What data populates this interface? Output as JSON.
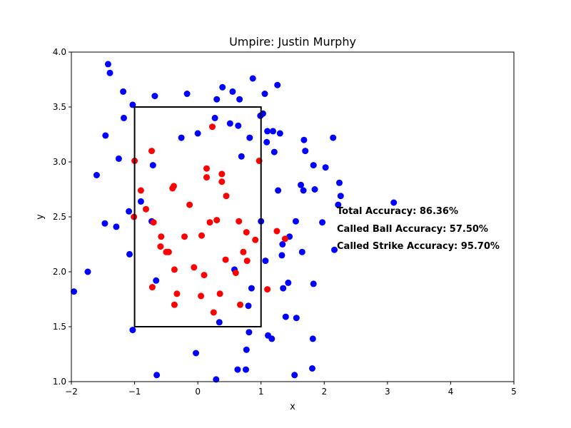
{
  "chart_data": {
    "type": "scatter",
    "title": "Umpire: Justin Murphy",
    "xlabel": "x",
    "ylabel": "y",
    "xlim": [
      -2,
      5
    ],
    "ylim": [
      1.0,
      4.0
    ],
    "xticks": [
      -2,
      -1,
      0,
      1,
      2,
      3,
      4,
      5
    ],
    "yticks": [
      1.0,
      1.5,
      2.0,
      2.5,
      3.0,
      3.5,
      4.0
    ],
    "xtick_labels": [
      "−2",
      "−1",
      "0",
      "1",
      "2",
      "3",
      "4",
      "5"
    ],
    "ytick_labels": [
      "1.0",
      "1.5",
      "2.0",
      "2.5",
      "3.0",
      "3.5",
      "4.0"
    ],
    "grid": false,
    "strike_zone": {
      "x": [
        -1,
        1
      ],
      "y": [
        1.5,
        3.5
      ],
      "color": "#000000"
    },
    "annotations": [
      "Total Accuracy: 86.36%",
      "Called Ball Accuracy: 57.50%",
      "Called Strike Accuracy: 95.70%"
    ],
    "series": [
      {
        "color": "#0000ff",
        "points": [
          [
            -1.96,
            1.82
          ],
          [
            -1.74,
            2.0
          ],
          [
            -1.6,
            2.88
          ],
          [
            -1.47,
            2.44
          ],
          [
            -1.46,
            3.24
          ],
          [
            -1.42,
            3.89
          ],
          [
            -1.39,
            3.81
          ],
          [
            -1.29,
            2.41
          ],
          [
            -1.25,
            3.03
          ],
          [
            -1.18,
            3.64
          ],
          [
            -1.17,
            3.4
          ],
          [
            -1.09,
            2.55
          ],
          [
            -1.08,
            2.16
          ],
          [
            -1.03,
            3.52
          ],
          [
            -1.03,
            1.47
          ],
          [
            -0.9,
            2.64
          ],
          [
            -0.73,
            2.46
          ],
          [
            -0.71,
            2.97
          ],
          [
            -0.68,
            3.6
          ],
          [
            -0.66,
            1.92
          ],
          [
            -0.65,
            1.06
          ],
          [
            -0.26,
            3.22
          ],
          [
            -0.17,
            3.62
          ],
          [
            -0.03,
            1.26
          ],
          [
            0.0,
            3.26
          ],
          [
            0.27,
            3.4
          ],
          [
            0.29,
            1.02
          ],
          [
            0.3,
            3.57
          ],
          [
            0.34,
            1.54
          ],
          [
            0.39,
            3.68
          ],
          [
            0.51,
            3.35
          ],
          [
            0.55,
            3.64
          ],
          [
            0.58,
            2.02
          ],
          [
            0.63,
            1.11
          ],
          [
            0.64,
            3.33
          ],
          [
            0.66,
            3.57
          ],
          [
            0.69,
            3.05
          ],
          [
            0.76,
            1.11
          ],
          [
            0.77,
            1.29
          ],
          [
            0.8,
            1.69
          ],
          [
            0.81,
            1.45
          ],
          [
            0.82,
            3.22
          ],
          [
            0.85,
            1.85
          ],
          [
            0.87,
            3.76
          ],
          [
            0.99,
            3.42
          ],
          [
            1.0,
            2.46
          ],
          [
            1.03,
            3.44
          ],
          [
            1.06,
            3.62
          ],
          [
            1.07,
            2.1
          ],
          [
            1.09,
            3.18
          ],
          [
            1.1,
            3.28
          ],
          [
            1.11,
            1.42
          ],
          [
            1.17,
            1.39
          ],
          [
            1.19,
            3.28
          ],
          [
            1.21,
            3.09
          ],
          [
            1.26,
            3.7
          ],
          [
            1.27,
            2.74
          ],
          [
            1.3,
            3.26
          ],
          [
            1.33,
            2.15
          ],
          [
            1.34,
            2.25
          ],
          [
            1.35,
            1.85
          ],
          [
            1.39,
            1.59
          ],
          [
            1.43,
            1.9
          ],
          [
            1.45,
            2.32
          ],
          [
            1.55,
            2.46
          ],
          [
            1.56,
            1.58
          ],
          [
            1.63,
            2.79
          ],
          [
            1.65,
            2.18
          ],
          [
            1.67,
            2.74
          ],
          [
            1.68,
            3.2
          ],
          [
            1.7,
            3.1
          ],
          [
            1.81,
            1.12
          ],
          [
            1.82,
            1.39
          ],
          [
            1.83,
            2.97
          ],
          [
            1.83,
            1.89
          ],
          [
            1.85,
            2.75
          ],
          [
            1.97,
            2.45
          ],
          [
            2.02,
            2.95
          ],
          [
            2.14,
            3.22
          ],
          [
            2.16,
            2.2
          ],
          [
            2.22,
            2.61
          ],
          [
            2.24,
            2.81
          ],
          [
            2.26,
            2.69
          ],
          [
            3.1,
            2.63
          ],
          [
            1.53,
            1.06
          ]
        ]
      },
      {
        "color": "#ff0000",
        "points": [
          [
            -1.0,
            3.01
          ],
          [
            -1.01,
            2.5
          ],
          [
            -0.9,
            2.74
          ],
          [
            -0.82,
            2.57
          ],
          [
            -0.73,
            3.1
          ],
          [
            -0.7,
            2.45
          ],
          [
            -0.72,
            1.86
          ],
          [
            -0.58,
            2.32
          ],
          [
            -0.59,
            2.23
          ],
          [
            -0.5,
            2.18
          ],
          [
            -0.46,
            2.18
          ],
          [
            -0.4,
            2.76
          ],
          [
            -0.38,
            2.78
          ],
          [
            -0.37,
            2.02
          ],
          [
            -0.37,
            1.7
          ],
          [
            -0.33,
            1.8
          ],
          [
            -0.21,
            2.32
          ],
          [
            -0.13,
            2.61
          ],
          [
            -0.06,
            2.04
          ],
          [
            0.05,
            1.78
          ],
          [
            0.06,
            2.33
          ],
          [
            0.1,
            1.97
          ],
          [
            0.14,
            2.94
          ],
          [
            0.14,
            2.86
          ],
          [
            0.19,
            2.45
          ],
          [
            0.23,
            3.32
          ],
          [
            0.25,
            1.63
          ],
          [
            0.3,
            2.47
          ],
          [
            0.35,
            1.8
          ],
          [
            0.38,
            2.89
          ],
          [
            0.38,
            2.82
          ],
          [
            0.44,
            2.11
          ],
          [
            0.45,
            2.69
          ],
          [
            0.6,
            1.99
          ],
          [
            0.65,
            2.46
          ],
          [
            0.67,
            1.7
          ],
          [
            0.72,
            2.18
          ],
          [
            0.77,
            2.36
          ],
          [
            0.78,
            2.1
          ],
          [
            0.91,
            2.29
          ],
          [
            0.97,
            3.01
          ],
          [
            1.1,
            1.84
          ],
          [
            1.25,
            2.37
          ],
          [
            1.38,
            2.3
          ]
        ]
      }
    ]
  }
}
